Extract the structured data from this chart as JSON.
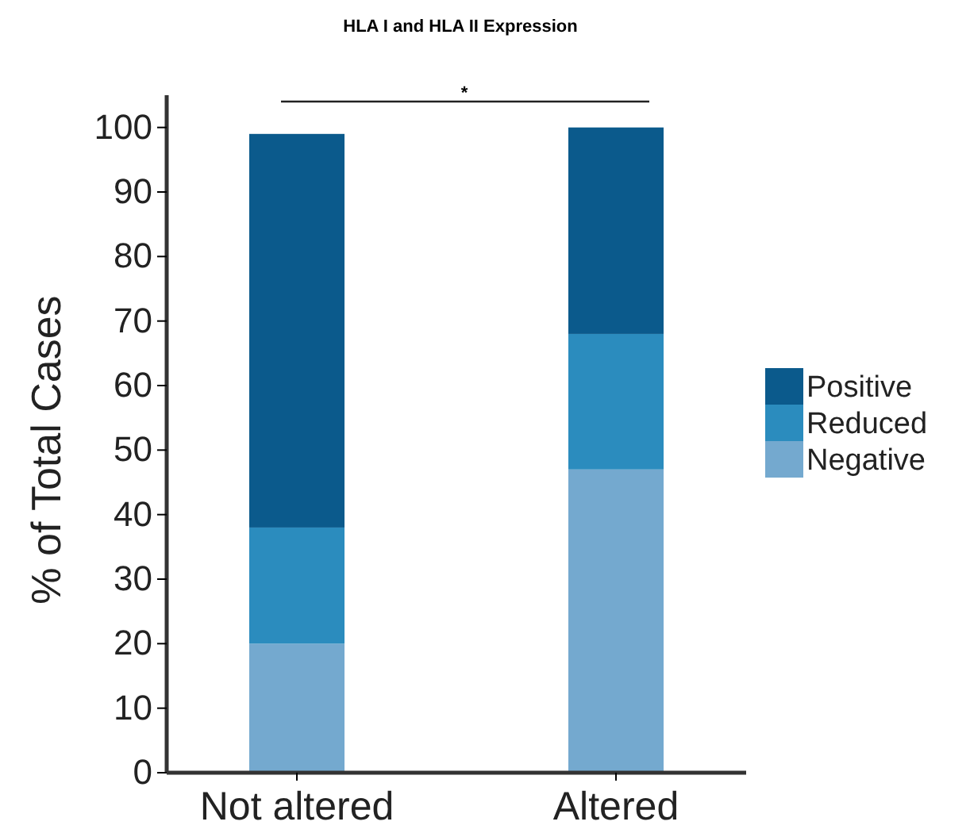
{
  "chart_data": {
    "type": "bar",
    "title": "HLA I and HLA II Expression",
    "ylabel": "% of Total Cases",
    "categories": [
      "Not altered",
      "Altered"
    ],
    "stacked": true,
    "series": [
      {
        "name": "Negative",
        "color": "#74a9cf",
        "values": [
          20,
          47
        ]
      },
      {
        "name": "Reduced",
        "color": "#2b8cbe",
        "values": [
          18,
          21
        ]
      },
      {
        "name": "Positive",
        "color": "#0b5a8c",
        "values": [
          61,
          32
        ]
      }
    ],
    "ylim": [
      0,
      105
    ],
    "yticks": [
      0,
      10,
      20,
      30,
      40,
      50,
      60,
      70,
      80,
      90,
      100
    ],
    "grid": false,
    "legend": "right",
    "annotations": [
      "*"
    ]
  }
}
